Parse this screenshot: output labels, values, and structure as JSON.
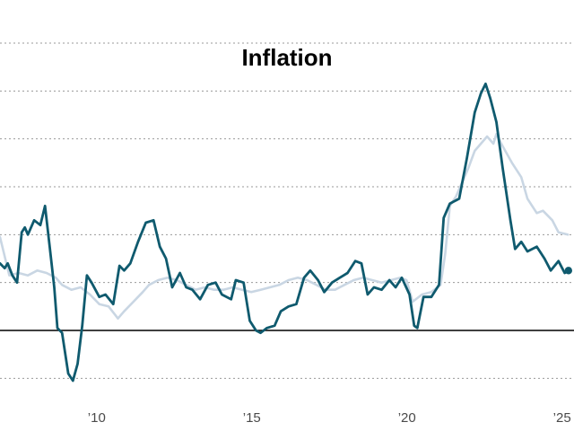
{
  "chart_data": {
    "type": "line",
    "title": "Inflation",
    "xlabel": "",
    "ylabel": "",
    "xlim": [
      2007.0,
      2025.5
    ],
    "ylim": [
      -2.1,
      6.9
    ],
    "grid": true,
    "grid_values": [
      -1,
      1,
      2,
      3,
      4,
      5,
      6
    ],
    "zero_line": 0,
    "legend": "none",
    "x_ticks": [
      {
        "value": 2010,
        "label": "’10"
      },
      {
        "value": 2015,
        "label": "’15"
      },
      {
        "value": 2020,
        "label": "’20"
      },
      {
        "value": 2025,
        "label": "’25"
      }
    ],
    "colors": {
      "headline": "#0f5a6e",
      "core": "#c9d6e3",
      "zero_line": "#000000",
      "grid": "#9a9a9a"
    },
    "series": [
      {
        "color": "#c9d6e3",
        "points": [
          [
            2007.0,
            1.95
          ],
          [
            2007.3,
            1.15
          ],
          [
            2007.6,
            1.2
          ],
          [
            2007.9,
            1.15
          ],
          [
            2008.2,
            1.25
          ],
          [
            2008.5,
            1.2
          ],
          [
            2008.8,
            1.1
          ],
          [
            2009.0,
            0.95
          ],
          [
            2009.3,
            0.85
          ],
          [
            2009.6,
            0.9
          ],
          [
            2009.9,
            0.75
          ],
          [
            2010.2,
            0.55
          ],
          [
            2010.5,
            0.5
          ],
          [
            2010.8,
            0.25
          ],
          [
            2011.0,
            0.4
          ],
          [
            2011.3,
            0.6
          ],
          [
            2011.6,
            0.8
          ],
          [
            2011.8,
            0.95
          ],
          [
            2012.1,
            1.05
          ],
          [
            2012.4,
            1.1
          ],
          [
            2012.7,
            1.05
          ],
          [
            2013.0,
            0.95
          ],
          [
            2013.3,
            0.85
          ],
          [
            2013.6,
            0.9
          ],
          [
            2013.9,
            0.85
          ],
          [
            2014.2,
            0.85
          ],
          [
            2014.5,
            0.9
          ],
          [
            2014.8,
            0.85
          ],
          [
            2015.1,
            0.8
          ],
          [
            2015.4,
            0.85
          ],
          [
            2015.7,
            0.9
          ],
          [
            2016.0,
            0.95
          ],
          [
            2016.3,
            1.05
          ],
          [
            2016.6,
            1.1
          ],
          [
            2016.9,
            1.05
          ],
          [
            2017.2,
            0.95
          ],
          [
            2017.5,
            0.85
          ],
          [
            2017.8,
            0.85
          ],
          [
            2018.1,
            0.95
          ],
          [
            2018.4,
            1.05
          ],
          [
            2018.7,
            1.1
          ],
          [
            2019.0,
            1.05
          ],
          [
            2019.3,
            1.0
          ],
          [
            2019.6,
            1.05
          ],
          [
            2019.9,
            1.1
          ],
          [
            2020.1,
            1.05
          ],
          [
            2020.3,
            0.6
          ],
          [
            2020.6,
            0.75
          ],
          [
            2020.9,
            0.8
          ],
          [
            2021.2,
            0.95
          ],
          [
            2021.35,
            1.6
          ],
          [
            2021.5,
            2.6
          ],
          [
            2021.7,
            2.8
          ],
          [
            2021.9,
            3.1
          ],
          [
            2022.1,
            3.4
          ],
          [
            2022.3,
            3.75
          ],
          [
            2022.5,
            3.9
          ],
          [
            2022.7,
            4.05
          ],
          [
            2022.9,
            3.9
          ],
          [
            2023.0,
            4.1
          ],
          [
            2023.2,
            3.85
          ],
          [
            2023.5,
            3.5
          ],
          [
            2023.8,
            3.2
          ],
          [
            2024.0,
            2.75
          ],
          [
            2024.3,
            2.45
          ],
          [
            2024.5,
            2.5
          ],
          [
            2024.8,
            2.3
          ],
          [
            2025.0,
            2.05
          ],
          [
            2025.3,
            2.0
          ]
        ]
      },
      {
        "color": "#0f5a6e",
        "points": [
          [
            2007.0,
            1.4
          ],
          [
            2007.15,
            1.3
          ],
          [
            2007.25,
            1.4
          ],
          [
            2007.4,
            1.15
          ],
          [
            2007.55,
            1.0
          ],
          [
            2007.7,
            2.05
          ],
          [
            2007.8,
            2.15
          ],
          [
            2007.9,
            2.0
          ],
          [
            2008.1,
            2.3
          ],
          [
            2008.3,
            2.2
          ],
          [
            2008.45,
            2.6
          ],
          [
            2008.6,
            1.75
          ],
          [
            2008.75,
            0.9
          ],
          [
            2008.85,
            0.05
          ],
          [
            2009.0,
            -0.05
          ],
          [
            2009.2,
            -0.9
          ],
          [
            2009.35,
            -1.05
          ],
          [
            2009.5,
            -0.7
          ],
          [
            2009.65,
            0.1
          ],
          [
            2009.8,
            1.15
          ],
          [
            2009.95,
            1.0
          ],
          [
            2010.2,
            0.7
          ],
          [
            2010.4,
            0.75
          ],
          [
            2010.65,
            0.55
          ],
          [
            2010.85,
            1.35
          ],
          [
            2011.0,
            1.25
          ],
          [
            2011.2,
            1.4
          ],
          [
            2011.45,
            1.85
          ],
          [
            2011.7,
            2.25
          ],
          [
            2011.95,
            2.3
          ],
          [
            2012.15,
            1.75
          ],
          [
            2012.35,
            1.5
          ],
          [
            2012.55,
            0.9
          ],
          [
            2012.8,
            1.2
          ],
          [
            2013.0,
            0.9
          ],
          [
            2013.2,
            0.85
          ],
          [
            2013.45,
            0.65
          ],
          [
            2013.7,
            0.95
          ],
          [
            2013.95,
            1.0
          ],
          [
            2014.15,
            0.75
          ],
          [
            2014.45,
            0.65
          ],
          [
            2014.6,
            1.05
          ],
          [
            2014.85,
            1.0
          ],
          [
            2015.05,
            0.2
          ],
          [
            2015.25,
            0.0
          ],
          [
            2015.4,
            -0.05
          ],
          [
            2015.6,
            0.05
          ],
          [
            2015.85,
            0.1
          ],
          [
            2016.05,
            0.4
          ],
          [
            2016.3,
            0.5
          ],
          [
            2016.55,
            0.55
          ],
          [
            2016.8,
            1.1
          ],
          [
            2017.0,
            1.25
          ],
          [
            2017.25,
            1.05
          ],
          [
            2017.45,
            0.8
          ],
          [
            2017.7,
            1.0
          ],
          [
            2017.95,
            1.1
          ],
          [
            2018.2,
            1.2
          ],
          [
            2018.45,
            1.45
          ],
          [
            2018.65,
            1.4
          ],
          [
            2018.85,
            0.75
          ],
          [
            2019.05,
            0.9
          ],
          [
            2019.3,
            0.85
          ],
          [
            2019.55,
            1.05
          ],
          [
            2019.75,
            0.9
          ],
          [
            2019.95,
            1.1
          ],
          [
            2020.2,
            0.75
          ],
          [
            2020.35,
            0.1
          ],
          [
            2020.45,
            0.05
          ],
          [
            2020.65,
            0.7
          ],
          [
            2020.9,
            0.7
          ],
          [
            2021.15,
            0.95
          ],
          [
            2021.3,
            2.35
          ],
          [
            2021.5,
            2.65
          ],
          [
            2021.8,
            2.75
          ],
          [
            2022.05,
            3.6
          ],
          [
            2022.3,
            4.55
          ],
          [
            2022.5,
            4.95
          ],
          [
            2022.65,
            5.15
          ],
          [
            2022.8,
            4.85
          ],
          [
            2023.0,
            4.35
          ],
          [
            2023.2,
            3.4
          ],
          [
            2023.45,
            2.3
          ],
          [
            2023.6,
            1.7
          ],
          [
            2023.8,
            1.85
          ],
          [
            2024.0,
            1.65
          ],
          [
            2024.3,
            1.75
          ],
          [
            2024.55,
            1.5
          ],
          [
            2024.75,
            1.25
          ],
          [
            2025.0,
            1.45
          ],
          [
            2025.2,
            1.2
          ],
          [
            2025.35,
            1.25
          ]
        ]
      }
    ]
  }
}
